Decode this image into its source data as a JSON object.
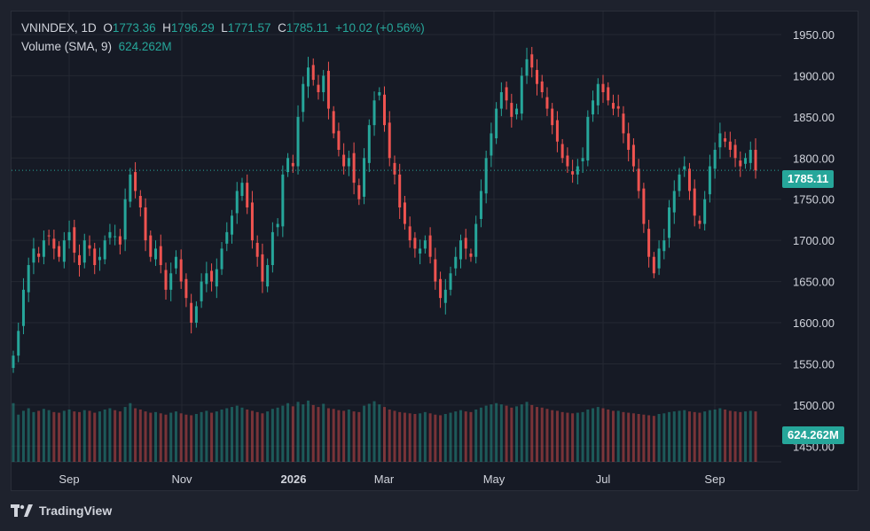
{
  "header": {
    "symbol": "VNINDEX",
    "interval": "1D",
    "open_label": "O",
    "open": "1773.36",
    "high_label": "H",
    "high": "1796.29",
    "low_label": "L",
    "low": "1771.57",
    "close_label": "C",
    "close": "1785.11",
    "change": "+10.02 (+0.56%)"
  },
  "volume_legend": {
    "label": "Volume (SMA, 9)",
    "value": "624.262M"
  },
  "price_badge": "1785.11",
  "volume_badge": "624.262M",
  "brand": "TradingView",
  "colors": {
    "up": "#26a69a",
    "down": "#ef5350",
    "background": "#161a25",
    "grid": "#242832",
    "text": "#d1d4dc"
  },
  "chart_data": {
    "type": "candlestick",
    "y_axis": {
      "ticks": [
        1450,
        1500,
        1550,
        1600,
        1650,
        1700,
        1750,
        1800,
        1850,
        1900,
        1950
      ],
      "ylim": [
        1440,
        1975
      ],
      "position": "right"
    },
    "x_axis": {
      "ticks": [
        "Sep",
        "Nov",
        "2026",
        "Mar",
        "May",
        "Jul",
        "Sep"
      ]
    },
    "last_price": 1785.11,
    "volume_sma9": "624.262M",
    "series": [
      {
        "name": "Price",
        "close": [
          1560,
          1590,
          1640,
          1670,
          1690,
          1680,
          1700,
          1705,
          1690,
          1680,
          1700,
          1710,
          1685,
          1670,
          1700,
          1690,
          1670,
          1680,
          1700,
          1710,
          1705,
          1695,
          1750,
          1780,
          1760,
          1740,
          1700,
          1680,
          1690,
          1670,
          1640,
          1660,
          1680,
          1650,
          1630,
          1600,
          1620,
          1650,
          1660,
          1650,
          1665,
          1690,
          1710,
          1730,
          1760,
          1770,
          1740,
          1700,
          1680,
          1650,
          1670,
          1710,
          1720,
          1780,
          1800,
          1790,
          1850,
          1890,
          1910,
          1895,
          1880,
          1900,
          1860,
          1830,
          1810,
          1790,
          1800,
          1770,
          1750,
          1800,
          1840,
          1870,
          1880,
          1840,
          1800,
          1780,
          1740,
          1720,
          1700,
          1690,
          1690,
          1700,
          1680,
          1650,
          1630,
          1640,
          1660,
          1680,
          1700,
          1690,
          1680,
          1720,
          1760,
          1800,
          1830,
          1860,
          1880,
          1870,
          1850,
          1860,
          1900,
          1920,
          1910,
          1890,
          1880,
          1860,
          1840,
          1820,
          1800,
          1790,
          1780,
          1790,
          1800,
          1850,
          1870,
          1890,
          1880,
          1870,
          1860,
          1860,
          1830,
          1810,
          1790,
          1760,
          1720,
          1680,
          1660,
          1690,
          1700,
          1740,
          1760,
          1780,
          1790,
          1760,
          1730,
          1720,
          1750,
          1790,
          1810,
          1830,
          1820,
          1810,
          1800,
          1790,
          1800,
          1810,
          1785
        ]
      }
    ],
    "volume": [
      92,
      74,
      80,
      84,
      78,
      80,
      83,
      81,
      78,
      77,
      80,
      82,
      79,
      78,
      81,
      80,
      77,
      79,
      82,
      84,
      81,
      79,
      86,
      92,
      84,
      82,
      79,
      77,
      78,
      76,
      74,
      77,
      79,
      76,
      74,
      73,
      75,
      78,
      80,
      77,
      79,
      82,
      84,
      86,
      88,
      85,
      82,
      80,
      78,
      76,
      79,
      83,
      85,
      88,
      92,
      87,
      94,
      90,
      96,
      89,
      86,
      91,
      84,
      83,
      81,
      80,
      82,
      79,
      78,
      88,
      91,
      95,
      90,
      86,
      82,
      80,
      78,
      77,
      76,
      75,
      76,
      78,
      76,
      74,
      73,
      75,
      77,
      79,
      81,
      79,
      78,
      82,
      85,
      88,
      90,
      92,
      90,
      88,
      85,
      87,
      90,
      94,
      89,
      86,
      85,
      83,
      81,
      80,
      78,
      77,
      76,
      77,
      78,
      82,
      84,
      86,
      84,
      82,
      80,
      80,
      78,
      77,
      76,
      75,
      74,
      73,
      72,
      75,
      76,
      78,
      79,
      80,
      81,
      79,
      78,
      77,
      79,
      81,
      82,
      84,
      82,
      80,
      79,
      78,
      79,
      80,
      79
    ]
  }
}
